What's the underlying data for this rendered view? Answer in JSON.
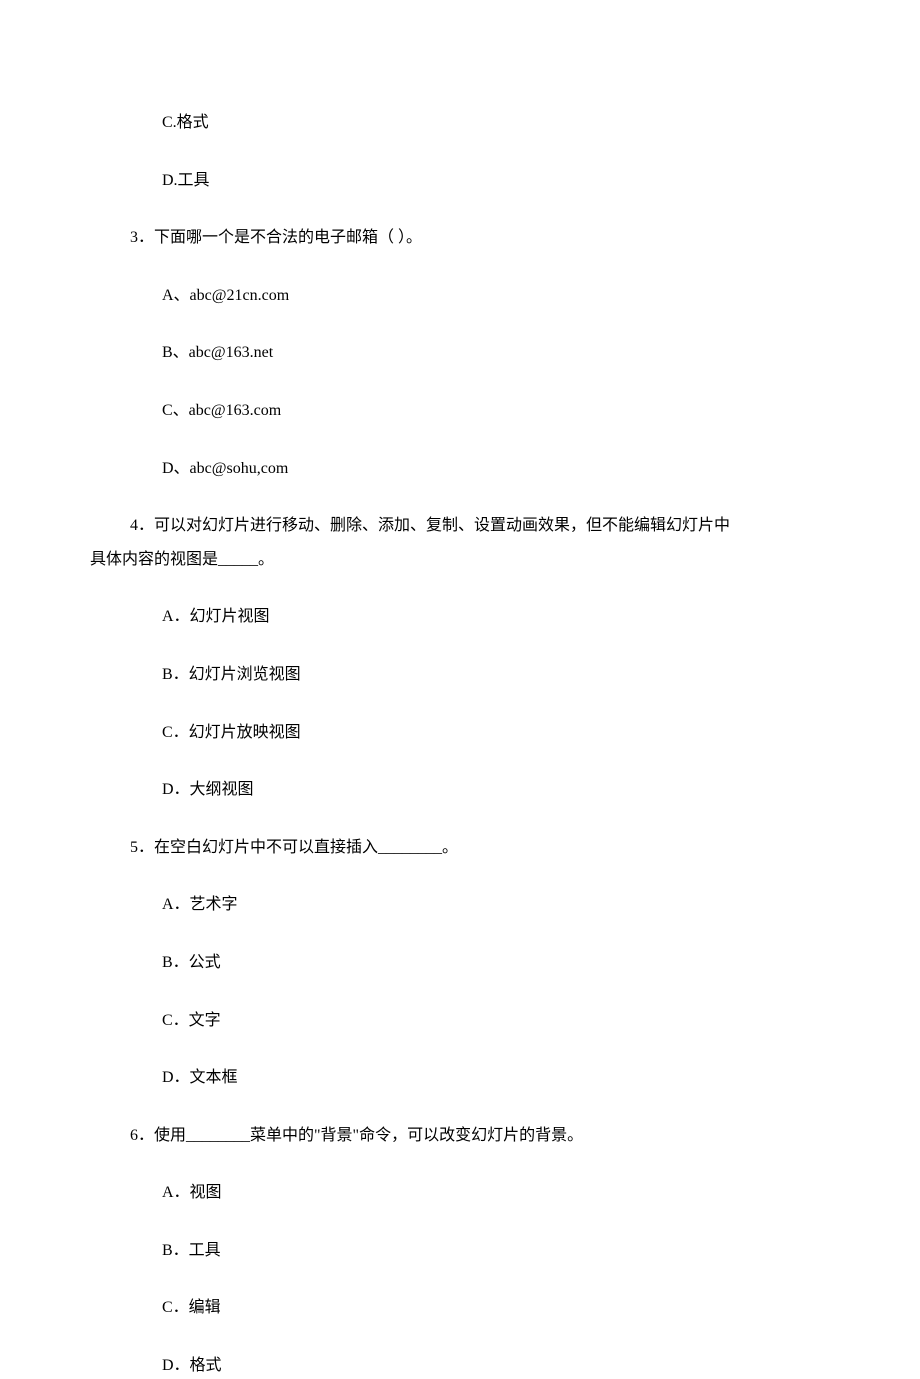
{
  "items": [
    {
      "cls": "option",
      "text": "C.格式"
    },
    {
      "cls": "option",
      "text": "D.工具"
    },
    {
      "cls": "question",
      "text": "3．下面哪一个是不合法的电子邮箱（ ）。"
    },
    {
      "cls": "option",
      "text": "A、abc@21cn.com"
    },
    {
      "cls": "option",
      "text": "B、abc@163.net"
    },
    {
      "cls": "option",
      "text": "C、abc@163.com"
    },
    {
      "cls": "option",
      "text": "D、abc@sohu,com"
    },
    {
      "cls": "question-wrap",
      "text": "4．可以对幻灯片进行移动、删除、添加、复制、设置动画效果，但不能编辑幻灯片中"
    },
    {
      "cls": "question-continuation",
      "text": "具体内容的视图是_____。"
    },
    {
      "cls": "option",
      "text": "A．幻灯片视图"
    },
    {
      "cls": "option",
      "text": "B．幻灯片浏览视图"
    },
    {
      "cls": "option",
      "text": "C．幻灯片放映视图"
    },
    {
      "cls": "option",
      "text": "D．大纲视图"
    },
    {
      "cls": "question",
      "text": "5．在空白幻灯片中不可以直接插入________。"
    },
    {
      "cls": "option",
      "text": "A．艺术字"
    },
    {
      "cls": "option",
      "text": "B．公式"
    },
    {
      "cls": "option",
      "text": "C．文字"
    },
    {
      "cls": "option",
      "text": "D．文本框"
    },
    {
      "cls": "question",
      "text": "6．使用________菜单中的\"背景\"命令，可以改变幻灯片的背景。"
    },
    {
      "cls": "option",
      "text": "A．视图"
    },
    {
      "cls": "option",
      "text": "B．工具"
    },
    {
      "cls": "option",
      "text": "C．编辑"
    },
    {
      "cls": "option",
      "text": "D．格式"
    }
  ],
  "colors": {
    "background": "#ffffff",
    "text": "#000000"
  },
  "typography": {
    "font_family": "SimSun",
    "font_size_pt": 12
  }
}
